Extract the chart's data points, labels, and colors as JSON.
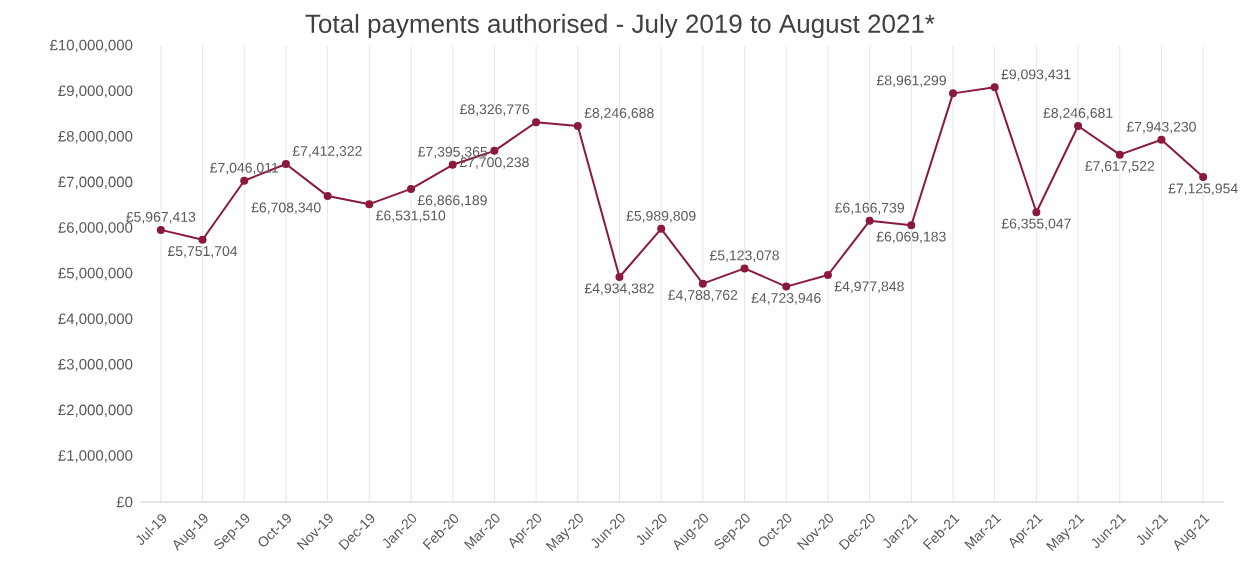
{
  "chart_data": {
    "type": "line",
    "title": "Total payments authorised - July 2019 to August 2021*",
    "categories": [
      "Jul-19",
      "Aug-19",
      "Sep-19",
      "Oct-19",
      "Nov-19",
      "Dec-19",
      "Jan-20",
      "Feb-20",
      "Mar-20",
      "Apr-20",
      "May-20",
      "Jun-20",
      "Jul-20",
      "Aug-20",
      "Sep-20",
      "Oct-20",
      "Nov-20",
      "Dec-20",
      "Jan-21",
      "Feb-21",
      "Mar-21",
      "Apr-21",
      "May-21",
      "Jun-21",
      "Jul-21",
      "Aug-21"
    ],
    "values": [
      5967413,
      5751704,
      7046011,
      7412322,
      6708340,
      6531510,
      6866189,
      7395365,
      7700238,
      8326776,
      8246688,
      4934382,
      5989809,
      4788762,
      5123078,
      4723946,
      4977848,
      6166739,
      6069183,
      8961299,
      9093431,
      6355047,
      8246681,
      7617522,
      7943230,
      7125954
    ],
    "value_labels": [
      "£5,967,413",
      "£5,751,704",
      "£7,046,011",
      "£7,412,322",
      "£6,708,340",
      "£6,531,510",
      "£6,866,189",
      "£7,395,365",
      "£7,700,238",
      "£8,326,776",
      "£8,246,688",
      "£4,934,382",
      "£5,989,809",
      "£4,788,762",
      "£5,123,078",
      "£4,723,946",
      "£4,977,848",
      "£6,166,739",
      "£6,069,183",
      "£8,961,299",
      "£9,093,431",
      "£6,355,047",
      "£8,246,681",
      "£7,617,522",
      "£7,943,230",
      "£7,125,954"
    ],
    "color": "#8b1a3a",
    "marker": "circle",
    "grid": "x",
    "ylim": [
      0,
      10000000
    ],
    "yticks": [
      {
        "value": 0,
        "label": "£0"
      },
      {
        "value": 1000000,
        "label": "£1,000,000"
      },
      {
        "value": 2000000,
        "label": "£2,000,000"
      },
      {
        "value": 3000000,
        "label": "£3,000,000"
      },
      {
        "value": 4000000,
        "label": "£4,000,000"
      },
      {
        "value": 5000000,
        "label": "£5,000,000"
      },
      {
        "value": 6000000,
        "label": "£6,000,000"
      },
      {
        "value": 7000000,
        "label": "£7,000,000"
      },
      {
        "value": 8000000,
        "label": "£8,000,000"
      },
      {
        "value": 9000000,
        "label": "£9,000,000"
      },
      {
        "value": 10000000,
        "label": "£10,000,000"
      }
    ]
  }
}
